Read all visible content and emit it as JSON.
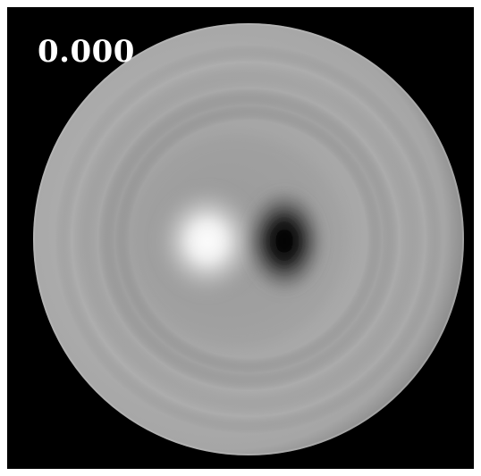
{
  "image": {
    "readout_value": "0.000",
    "colors": {
      "background": "#000000",
      "disc_base": "#a9a9a9",
      "bright_lobe": "#ffffff",
      "dark_lobe": "#050505",
      "readout_text": "#ffffff"
    }
  }
}
